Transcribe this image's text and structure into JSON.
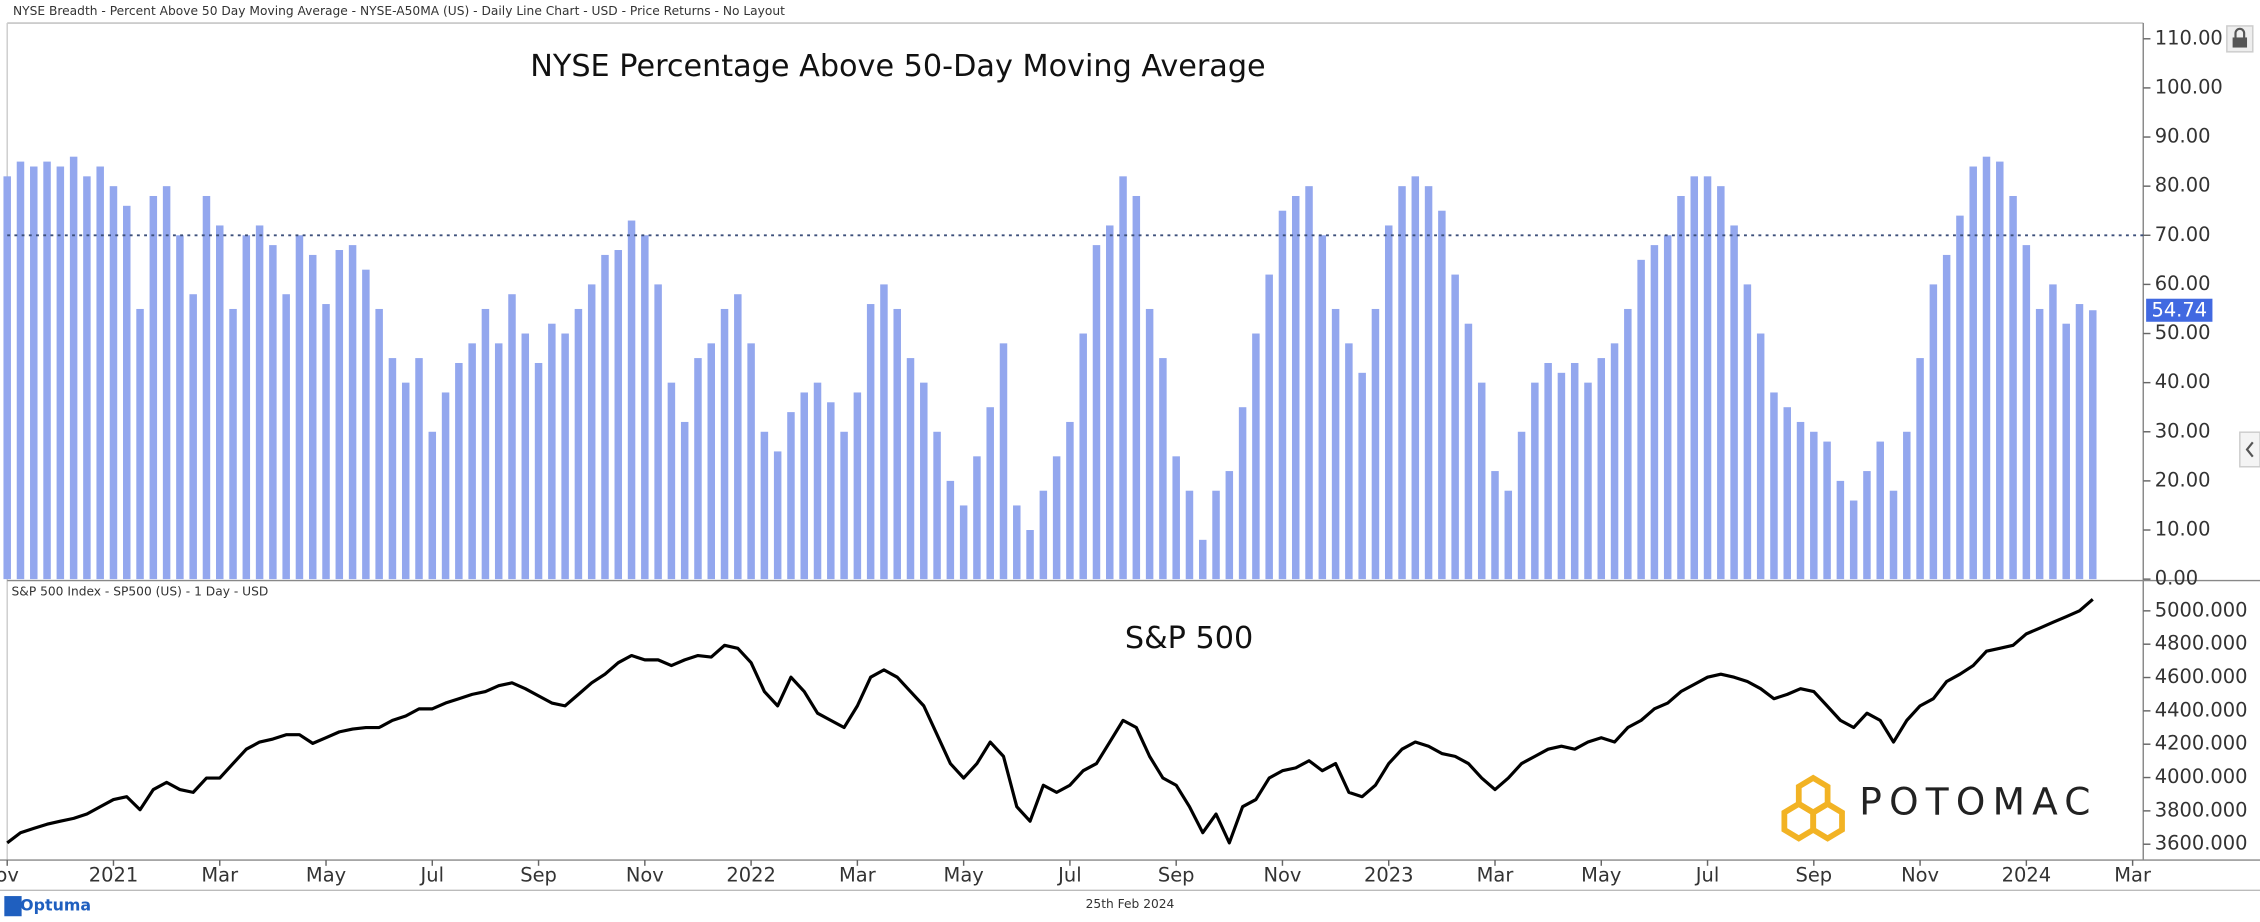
{
  "header": {
    "source": "NYSE Breadth - Percent Above 50 Day Moving Average - NYSE-A50MA (US) - Daily Line Chart - USD - Price Returns - No Layout"
  },
  "footer": {
    "brand": "Optuma",
    "date": "25th Feb 2024",
    "watermark": "POTOMAC"
  },
  "chart_data": [
    {
      "type": "bar",
      "title": "NYSE Percentage Above 50-Day Moving Average",
      "color": "#93a7ee",
      "badge_color": "#4169e1",
      "hline": 70,
      "grid": false,
      "xlim": [
        0,
        40.2
      ],
      "ylim": [
        0,
        113
      ],
      "yticks": [
        {
          "value": 0,
          "label": "0.00"
        },
        {
          "value": 10,
          "label": "10.00"
        },
        {
          "value": 20,
          "label": "20.00"
        },
        {
          "value": 30,
          "label": "30.00"
        },
        {
          "value": 40,
          "label": "40.00"
        },
        {
          "value": 50,
          "label": "50.00"
        },
        {
          "value": 60,
          "label": "60.00"
        },
        {
          "value": 70,
          "label": "70.00"
        },
        {
          "value": 80,
          "label": "80.00"
        },
        {
          "value": 90,
          "label": "90.00"
        },
        {
          "value": 100,
          "label": "100.00"
        },
        {
          "value": 110,
          "label": "110.00"
        }
      ],
      "x": [
        0,
        0.25,
        0.5,
        0.75,
        1,
        1.25,
        1.5,
        1.75,
        2,
        2.25,
        2.5,
        2.75,
        3,
        3.25,
        3.5,
        3.75,
        4,
        4.25,
        4.5,
        4.75,
        5,
        5.25,
        5.5,
        5.75,
        6,
        6.25,
        6.5,
        6.75,
        7,
        7.25,
        7.5,
        7.75,
        8,
        8.25,
        8.5,
        8.75,
        9,
        9.25,
        9.5,
        9.75,
        10,
        10.25,
        10.5,
        10.75,
        11,
        11.25,
        11.5,
        11.75,
        12,
        12.25,
        12.5,
        12.75,
        13,
        13.25,
        13.5,
        13.75,
        14,
        14.25,
        14.5,
        14.75,
        15,
        15.25,
        15.5,
        15.75,
        16,
        16.25,
        16.5,
        16.75,
        17,
        17.25,
        17.5,
        17.75,
        18,
        18.25,
        18.5,
        18.75,
        19,
        19.25,
        19.5,
        19.75,
        20,
        20.25,
        20.5,
        20.75,
        21,
        21.25,
        21.5,
        21.75,
        22,
        22.25,
        22.5,
        22.75,
        23,
        23.25,
        23.5,
        23.75,
        24,
        24.25,
        24.5,
        24.75,
        25,
        25.25,
        25.5,
        25.75,
        26,
        26.25,
        26.5,
        26.75,
        27,
        27.25,
        27.5,
        27.75,
        28,
        28.25,
        28.5,
        28.75,
        29,
        29.25,
        29.5,
        29.75,
        30,
        30.25,
        30.5,
        30.75,
        31,
        31.25,
        31.5,
        31.75,
        32,
        32.25,
        32.5,
        32.75,
        33,
        33.25,
        33.5,
        33.75,
        34,
        34.25,
        34.5,
        34.75,
        35,
        35.25,
        35.5,
        35.75,
        36,
        36.25,
        36.5,
        36.75,
        37,
        37.25,
        37.5,
        37.75,
        38,
        38.25,
        38.5,
        38.75,
        39,
        39.25
      ],
      "series": [
        {
          "values": [
            82,
            85,
            84,
            85,
            84,
            86,
            82,
            84,
            80,
            76,
            55,
            78,
            80,
            70,
            58,
            78,
            72,
            55,
            70,
            72,
            68,
            58,
            70,
            66,
            56,
            67,
            68,
            63,
            55,
            45,
            40,
            45,
            30,
            38,
            44,
            48,
            55,
            48,
            58,
            50,
            44,
            52,
            50,
            55,
            60,
            66,
            67,
            73,
            70,
            60,
            40,
            32,
            45,
            48,
            55,
            58,
            48,
            30,
            26,
            34,
            38,
            40,
            36,
            30,
            38,
            56,
            60,
            55,
            45,
            40,
            30,
            20,
            15,
            25,
            35,
            48,
            15,
            10,
            18,
            25,
            32,
            50,
            68,
            72,
            82,
            78,
            55,
            45,
            25,
            18,
            8,
            18,
            22,
            35,
            50,
            62,
            75,
            78,
            80,
            70,
            55,
            48,
            42,
            55,
            72,
            80,
            82,
            80,
            75,
            62,
            52,
            40,
            22,
            18,
            30,
            40,
            44,
            42,
            44,
            40,
            45,
            48,
            55,
            65,
            68,
            70,
            78,
            82,
            82,
            80,
            72,
            60,
            50,
            38,
            35,
            32,
            30,
            28,
            20,
            16,
            22,
            28,
            18,
            30,
            45,
            60,
            66,
            74,
            84,
            86,
            85,
            78,
            68,
            55,
            60,
            52,
            56,
            54.74
          ]
        }
      ]
    },
    {
      "type": "line",
      "title": "S&P 500",
      "source": "S&P 500 Index  - SP500 (US) - 1 Day - USD",
      "color": "#000000",
      "grid": false,
      "xlim": [
        0,
        40.2
      ],
      "ylim": [
        3505,
        5173
      ],
      "yticks": [
        {
          "value": 3600,
          "label": "3600.000"
        },
        {
          "value": 3800,
          "label": "3800.000"
        },
        {
          "value": 4000,
          "label": "4000.000"
        },
        {
          "value": 4200,
          "label": "4200.000"
        },
        {
          "value": 4400,
          "label": "4400.000"
        },
        {
          "value": 4600,
          "label": "4600.000"
        },
        {
          "value": 4800,
          "label": "4800.000"
        },
        {
          "value": 5000,
          "label": "5000.000"
        }
      ],
      "xticks": [
        {
          "value": 0,
          "label": "ov"
        },
        {
          "value": 2,
          "label": "2021"
        },
        {
          "value": 4,
          "label": "Mar"
        },
        {
          "value": 6,
          "label": "May"
        },
        {
          "value": 8,
          "label": "Jul"
        },
        {
          "value": 10,
          "label": "Sep"
        },
        {
          "value": 12,
          "label": "Nov"
        },
        {
          "value": 14,
          "label": "2022"
        },
        {
          "value": 16,
          "label": "Mar"
        },
        {
          "value": 18,
          "label": "May"
        },
        {
          "value": 20,
          "label": "Jul"
        },
        {
          "value": 22,
          "label": "Sep"
        },
        {
          "value": 24,
          "label": "Nov"
        },
        {
          "value": 26,
          "label": "2023"
        },
        {
          "value": 28,
          "label": "Mar"
        },
        {
          "value": 30,
          "label": "May"
        },
        {
          "value": 32,
          "label": "Jul"
        },
        {
          "value": 34,
          "label": "Sep"
        },
        {
          "value": 36,
          "label": "Nov"
        },
        {
          "value": 38,
          "label": "2024"
        },
        {
          "value": 40,
          "label": "Mar"
        }
      ],
      "x": [
        0,
        0.25,
        0.5,
        0.75,
        1,
        1.25,
        1.5,
        1.75,
        2,
        2.25,
        2.5,
        2.75,
        3,
        3.25,
        3.5,
        3.75,
        4,
        4.25,
        4.5,
        4.75,
        5,
        5.25,
        5.5,
        5.75,
        6,
        6.25,
        6.5,
        6.75,
        7,
        7.25,
        7.5,
        7.75,
        8,
        8.25,
        8.5,
        8.75,
        9,
        9.25,
        9.5,
        9.75,
        10,
        10.25,
        10.5,
        10.75,
        11,
        11.25,
        11.5,
        11.75,
        12,
        12.25,
        12.5,
        12.75,
        13,
        13.25,
        13.5,
        13.75,
        14,
        14.25,
        14.5,
        14.75,
        15,
        15.25,
        15.5,
        15.75,
        16,
        16.25,
        16.5,
        16.75,
        17,
        17.25,
        17.5,
        17.75,
        18,
        18.25,
        18.5,
        18.75,
        19,
        19.25,
        19.5,
        19.75,
        20,
        20.25,
        20.5,
        20.75,
        21,
        21.25,
        21.5,
        21.75,
        22,
        22.25,
        22.5,
        22.75,
        23,
        23.25,
        23.5,
        23.75,
        24,
        24.25,
        24.5,
        24.75,
        25,
        25.25,
        25.5,
        25.75,
        26,
        26.25,
        26.5,
        26.75,
        27,
        27.25,
        27.5,
        27.75,
        28,
        28.25,
        28.5,
        28.75,
        29,
        29.25,
        29.5,
        29.75,
        30,
        30.25,
        30.5,
        30.75,
        31,
        31.25,
        31.5,
        31.75,
        32,
        32.25,
        32.5,
        32.75,
        33,
        33.25,
        33.5,
        33.75,
        34,
        34.25,
        34.5,
        34.75,
        35,
        35.25,
        35.5,
        35.75,
        36,
        36.25,
        36.5,
        36.75,
        37,
        37.25,
        37.5,
        37.75,
        38,
        38.25,
        38.5,
        38.75,
        39,
        39.25
      ],
      "series": [
        {
          "values": [
            3608,
            3669,
            3695,
            3720,
            3738,
            3755,
            3781,
            3825,
            3868,
            3885,
            3807,
            3928,
            3971,
            3928,
            3911,
            3997,
            3997,
            4084,
            4170,
            4213,
            4231,
            4257,
            4257,
            4205,
            4239,
            4274,
            4291,
            4300,
            4300,
            4343,
            4369,
            4412,
            4412,
            4447,
            4473,
            4499,
            4516,
            4551,
            4568,
            4533,
            4490,
            4447,
            4430,
            4499,
            4568,
            4620,
            4689,
            4732,
            4706,
            4706,
            4672,
            4706,
            4732,
            4723,
            4793,
            4775,
            4689,
            4516,
            4430,
            4602,
            4516,
            4386,
            4343,
            4300,
            4430,
            4602,
            4646,
            4602,
            4516,
            4430,
            4257,
            4084,
            3997,
            4084,
            4213,
            4127,
            3825,
            3738,
            3954,
            3911,
            3954,
            4041,
            4084,
            4213,
            4343,
            4300,
            4127,
            3997,
            3954,
            3825,
            3669,
            3781,
            3608,
            3825,
            3868,
            3997,
            4041,
            4058,
            4101,
            4041,
            4084,
            3911,
            3885,
            3954,
            4084,
            4170,
            4213,
            4188,
            4144,
            4127,
            4084,
            3997,
            3928,
            3997,
            4084,
            4127,
            4170,
            4188,
            4170,
            4213,
            4239,
            4213,
            4300,
            4343,
            4412,
            4447,
            4516,
            4559,
            4602,
            4620,
            4602,
            4576,
            4533,
            4473,
            4499,
            4533,
            4516,
            4430,
            4343,
            4300,
            4386,
            4343,
            4213,
            4343,
            4430,
            4473,
            4576,
            4620,
            4672,
            4758,
            4775,
            4793,
            4862,
            4896,
            4931,
            4965,
            5000,
            5069
          ]
        }
      ]
    }
  ]
}
